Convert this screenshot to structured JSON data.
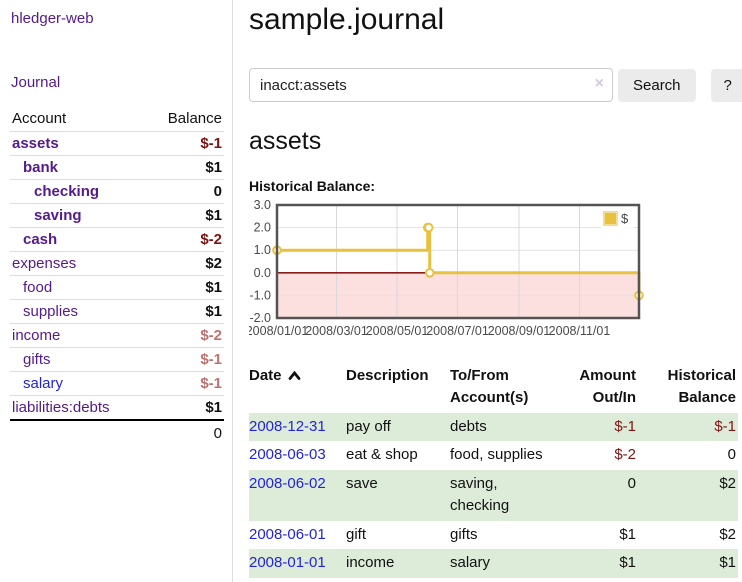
{
  "app": {
    "brand": "hledger-web"
  },
  "sidebar": {
    "nav": [
      {
        "label": "Journal"
      }
    ],
    "accounts_table": {
      "headers": [
        "Account",
        "Balance"
      ],
      "rows": [
        {
          "name": "assets",
          "indent": 1,
          "bold": true,
          "balance": "$-1",
          "balance_style": "neg-strong"
        },
        {
          "name": "bank",
          "indent": 2,
          "bold": true,
          "balance": "$1",
          "balance_style": "pos"
        },
        {
          "name": "checking",
          "indent": 3,
          "bold": true,
          "balance": "0",
          "balance_style": "pos"
        },
        {
          "name": "saving",
          "indent": 3,
          "bold": true,
          "balance": "$1",
          "balance_style": "pos"
        },
        {
          "name": "cash",
          "indent": 2,
          "bold": true,
          "balance": "$-2",
          "balance_style": "neg-strong"
        },
        {
          "name": "expenses",
          "indent": 1,
          "bold": false,
          "balance": "$2",
          "balance_style": "pos"
        },
        {
          "name": "food",
          "indent": 2,
          "bold": false,
          "balance": "$1",
          "balance_style": "pos"
        },
        {
          "name": "supplies",
          "indent": 2,
          "bold": false,
          "balance": "$1",
          "balance_style": "pos"
        },
        {
          "name": "income",
          "indent": 1,
          "bold": false,
          "balance": "$-2",
          "balance_style": "neg-muted"
        },
        {
          "name": "gifts",
          "indent": 2,
          "bold": false,
          "balance": "$-1",
          "balance_style": "neg-muted"
        },
        {
          "name": "salary",
          "indent": 2,
          "bold": false,
          "link_variant": "unvisited",
          "balance": "$-1",
          "balance_style": "neg-muted"
        },
        {
          "name": "liabilities:debts",
          "indent": 1,
          "bold": false,
          "balance": "$1",
          "balance_style": "pos"
        }
      ],
      "total": "0"
    }
  },
  "header": {
    "title": "sample.journal"
  },
  "search": {
    "value": "inacct:assets",
    "clear_icon": "×",
    "button_label": "Search",
    "help_label": "?"
  },
  "account_page": {
    "heading": "assets",
    "chart_label": "Historical Balance:"
  },
  "chart_data": {
    "type": "line",
    "step": true,
    "series": [
      {
        "name": "$",
        "color": "#e8c23f",
        "points": [
          [
            "2008-01-01",
            1
          ],
          [
            "2008-06-01",
            2
          ],
          [
            "2008-06-02",
            2
          ],
          [
            "2008-06-03",
            0
          ],
          [
            "2008-12-31",
            -1
          ]
        ]
      }
    ],
    "xlim": [
      "2008-01-01",
      "2008-12-31"
    ],
    "ylim": [
      -2,
      3
    ],
    "y_ticks": [
      {
        "v": 3,
        "label": "3.0"
      },
      {
        "v": 2,
        "label": "2.0"
      },
      {
        "v": 1,
        "label": "1.0"
      },
      {
        "v": 0,
        "label": "0.0"
      },
      {
        "v": -1,
        "label": "-1.0"
      },
      {
        "v": -2,
        "label": "-2.0"
      }
    ],
    "x_ticks": [
      {
        "date": "2008-01-01",
        "label": "2008/01/01"
      },
      {
        "date": "2008-03-01",
        "label": "2008/03/01"
      },
      {
        "date": "2008-05-01",
        "label": "2008/05/01"
      },
      {
        "date": "2008-07-01",
        "label": "2008/07/01"
      },
      {
        "date": "2008-09-01",
        "label": "2008/09/01"
      },
      {
        "date": "2008-11-01",
        "label": "2008/11/01"
      }
    ],
    "legend": {
      "position": "top-right",
      "label": "$"
    },
    "grid": true,
    "negative_fill": "#fcdfdf",
    "zero_line_color": "#8b1a1a"
  },
  "transactions_table": {
    "headers": [
      {
        "label": "Date",
        "sort": "asc"
      },
      {
        "label": "Description"
      },
      {
        "label": "To/From Account(s)"
      },
      {
        "label": "Amount Out/In",
        "align": "right"
      },
      {
        "label": "Historical Balance",
        "align": "right"
      }
    ],
    "rows": [
      {
        "date": "2008-12-31",
        "description": "pay off",
        "accounts": "debts",
        "amount": "$-1",
        "amount_neg": true,
        "balance": "$-1",
        "balance_neg": true
      },
      {
        "date": "2008-06-03",
        "description": "eat & shop",
        "accounts": "food, supplies",
        "amount": "$-2",
        "amount_neg": true,
        "balance": "0",
        "balance_neg": false
      },
      {
        "date": "2008-06-02",
        "description": "save",
        "accounts": "saving,\nchecking",
        "amount": "0",
        "amount_neg": false,
        "balance": "$2",
        "balance_neg": false
      },
      {
        "date": "2008-06-01",
        "description": "gift",
        "accounts": "gifts",
        "amount": "$1",
        "amount_neg": false,
        "balance": "$2",
        "balance_neg": false
      },
      {
        "date": "2008-01-01",
        "description": "income",
        "accounts": "salary",
        "amount": "$1",
        "amount_neg": false,
        "balance": "$1",
        "balance_neg": false
      }
    ]
  },
  "colors": {
    "link_purple": "#551a8b",
    "link_blue": "#2323dd",
    "negative_strong": "#7f1212",
    "negative_muted": "#c0716f",
    "row_green": "#ddecd9",
    "chart_gold": "#e8c23f",
    "chart_negative_fill": "#fcdfdf",
    "chart_zero_line": "#8b1a1a",
    "chart_border": "#545454"
  }
}
